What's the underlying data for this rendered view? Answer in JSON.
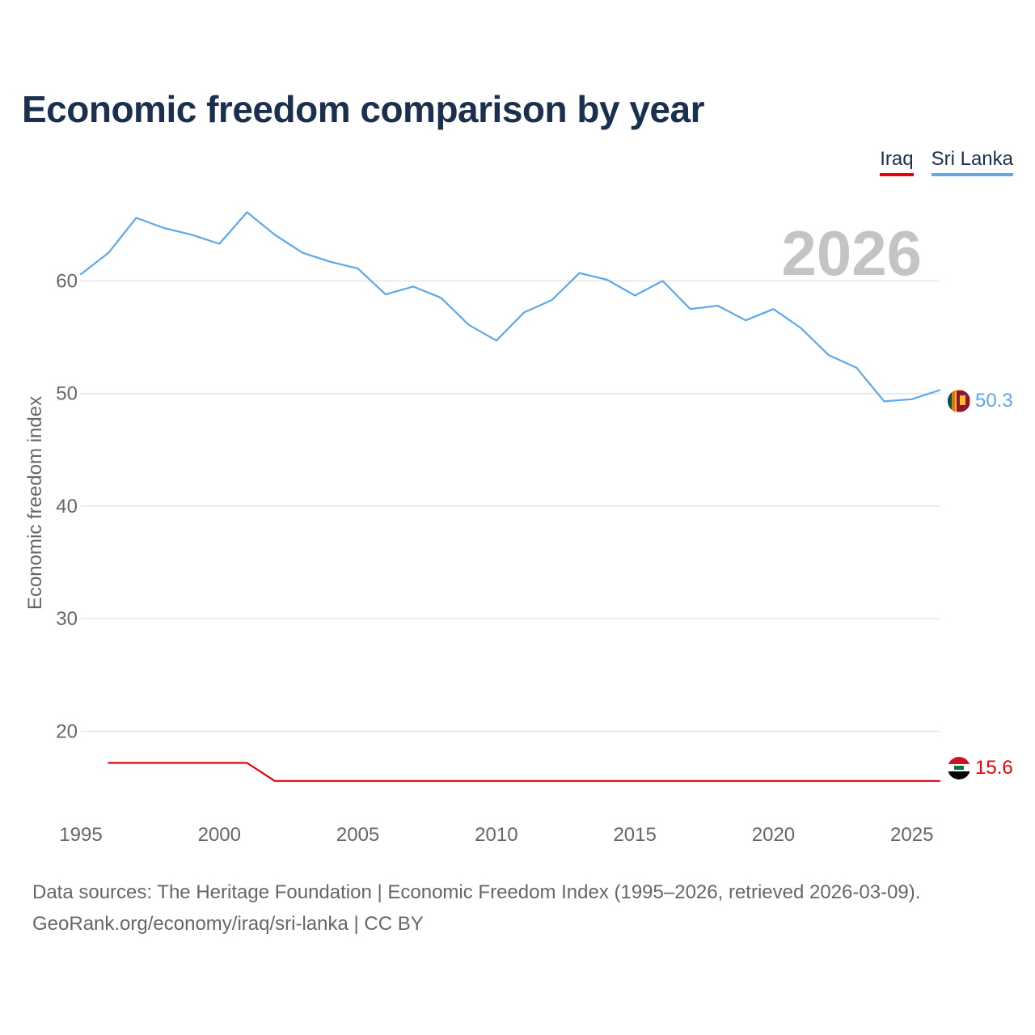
{
  "title": "Economic freedom comparison by year",
  "legend": [
    {
      "label": "Iraq",
      "color": "#e8000b"
    },
    {
      "label": "Sri Lanka",
      "color": "#5ea8e8"
    }
  ],
  "year_label": "2026",
  "footer": {
    "line1": "Data sources: The Heritage Foundation | Economic Freedom Index (1995–2026, retrieved 2026-03-09).",
    "line2": "GeoRank.org/economy/iraq/sri-lanka | CC BY"
  },
  "chart_data": {
    "type": "line",
    "title": "Economic freedom comparison by year",
    "xlabel": "",
    "ylabel": "Economic freedom index",
    "xlim": [
      1995,
      2026
    ],
    "ylim": [
      13,
      68
    ],
    "xticks": [
      1995,
      2000,
      2005,
      2010,
      2015,
      2020,
      2025
    ],
    "yticks": [
      20,
      30,
      40,
      50,
      60
    ],
    "grid": true,
    "series": [
      {
        "name": "Sri Lanka",
        "color": "#5ea8e8",
        "end_label": "50.3",
        "x": [
          1995,
          1996,
          1997,
          1998,
          1999,
          2000,
          2001,
          2002,
          2003,
          2004,
          2005,
          2006,
          2007,
          2008,
          2009,
          2010,
          2011,
          2012,
          2013,
          2014,
          2015,
          2016,
          2017,
          2018,
          2019,
          2020,
          2021,
          2022,
          2023,
          2024,
          2025,
          2026
        ],
        "values": [
          60.6,
          62.5,
          65.6,
          64.7,
          64.1,
          63.3,
          66.1,
          64.1,
          62.5,
          61.7,
          61.1,
          58.8,
          59.5,
          58.5,
          56.1,
          54.7,
          57.2,
          58.3,
          60.7,
          60.1,
          58.7,
          60.0,
          57.5,
          57.8,
          56.5,
          57.5,
          55.8,
          53.4,
          52.3,
          49.3,
          49.5,
          50.3
        ]
      },
      {
        "name": "Iraq",
        "color": "#e8000b",
        "end_label": "15.6",
        "x": [
          1996,
          1997,
          1998,
          1999,
          2000,
          2001,
          2002,
          2003,
          2004,
          2005,
          2006,
          2007,
          2008,
          2009,
          2010,
          2011,
          2012,
          2013,
          2014,
          2015,
          2016,
          2017,
          2018,
          2019,
          2020,
          2021,
          2022,
          2023,
          2024,
          2025,
          2026
        ],
        "values": [
          17.2,
          17.2,
          17.2,
          17.2,
          17.2,
          17.2,
          15.6,
          15.6,
          15.6,
          15.6,
          15.6,
          15.6,
          15.6,
          15.6,
          15.6,
          15.6,
          15.6,
          15.6,
          15.6,
          15.6,
          15.6,
          15.6,
          15.6,
          15.6,
          15.6,
          15.6,
          15.6,
          15.6,
          15.6,
          15.6,
          15.6
        ]
      }
    ]
  }
}
